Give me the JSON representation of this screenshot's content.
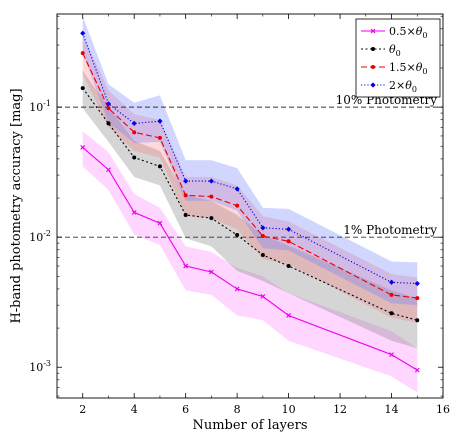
{
  "chart_data": {
    "type": "line",
    "title": "",
    "xlabel": "Number of layers",
    "ylabel": "H-band photometry accuracy [mag]",
    "xlim": [
      1,
      16
    ],
    "ylim": [
      0.00058,
      0.52
    ],
    "yscale": "log",
    "grid": false,
    "legend_position": "top-right",
    "x_ticks": [
      2,
      4,
      6,
      8,
      10,
      12,
      14,
      16
    ],
    "y_ticks": [
      {
        "value": 0.001,
        "label": "10",
        "exp": "-3"
      },
      {
        "value": 0.01,
        "label": "10",
        "exp": "-2"
      },
      {
        "value": 0.1,
        "label": "10",
        "exp": "-1"
      }
    ],
    "reference_lines": [
      {
        "y": 0.1,
        "label": "10% Photometry"
      },
      {
        "y": 0.01,
        "label": "1% Photometry"
      }
    ],
    "x": [
      2,
      3,
      4,
      5,
      6,
      7,
      8,
      9,
      10,
      14,
      15
    ],
    "series": [
      {
        "name": "0.5×θ0",
        "legend_main": "0.5×",
        "legend_theta": "θ",
        "legend_sub": "0",
        "color": "#ee00ee",
        "band_color": "#ff99ff",
        "band_opacity": 0.4,
        "dash": "",
        "marker": "cross",
        "values": [
          0.049,
          0.033,
          0.0155,
          0.0128,
          0.006,
          0.0054,
          0.004,
          0.0035,
          0.0025,
          0.00125,
          0.00095
        ],
        "lower": [
          0.035,
          0.023,
          0.0105,
          0.0087,
          0.0039,
          0.0036,
          0.0025,
          0.0023,
          0.0016,
          0.00085,
          0.00064
        ],
        "upper": [
          0.065,
          0.045,
          0.0215,
          0.0168,
          0.0085,
          0.0077,
          0.0058,
          0.005,
          0.0037,
          0.0019,
          0.0014
        ]
      },
      {
        "name": "θ0",
        "legend_main": "",
        "legend_theta": "θ",
        "legend_sub": "0",
        "color": "#000000",
        "band_color": "#888888",
        "band_opacity": 0.35,
        "dash": "2 2.5",
        "marker": "dot",
        "values": [
          0.14,
          0.075,
          0.041,
          0.035,
          0.0148,
          0.014,
          0.0104,
          0.0073,
          0.006,
          0.0026,
          0.0023
        ],
        "lower": [
          0.098,
          0.054,
          0.029,
          0.025,
          0.0098,
          0.0085,
          0.0055,
          0.0046,
          0.0037,
          0.0016,
          0.0014
        ],
        "upper": [
          0.19,
          0.1,
          0.055,
          0.046,
          0.021,
          0.019,
          0.0148,
          0.0104,
          0.0086,
          0.0039,
          0.0034
        ]
      },
      {
        "name": "1.5×θ0",
        "legend_main": "1.5×",
        "legend_theta": "θ",
        "legend_sub": "0",
        "color": "#ee0000",
        "band_color": "#ff6666",
        "band_opacity": 0.25,
        "dash": "6 3",
        "marker": "dot",
        "values": [
          0.26,
          0.098,
          0.064,
          0.058,
          0.021,
          0.0205,
          0.0175,
          0.0102,
          0.0093,
          0.0036,
          0.0034
        ],
        "lower": [
          0.18,
          0.07,
          0.046,
          0.041,
          0.0145,
          0.014,
          0.0115,
          0.0068,
          0.0062,
          0.0024,
          0.0022
        ],
        "upper": [
          0.36,
          0.135,
          0.088,
          0.08,
          0.029,
          0.029,
          0.025,
          0.0145,
          0.0132,
          0.0052,
          0.0049
        ]
      },
      {
        "name": "2×θ0",
        "legend_main": "2×",
        "legend_theta": "θ",
        "legend_sub": "0",
        "color": "#0000ee",
        "band_color": "#6677ff",
        "band_opacity": 0.3,
        "dash": "1.2 2",
        "marker": "diamond",
        "values": [
          0.37,
          0.106,
          0.075,
          0.078,
          0.027,
          0.027,
          0.0235,
          0.0118,
          0.0115,
          0.0045,
          0.0044
        ],
        "lower": [
          0.26,
          0.076,
          0.053,
          0.054,
          0.019,
          0.019,
          0.016,
          0.0082,
          0.0079,
          0.0031,
          0.003
        ],
        "upper": [
          0.5,
          0.15,
          0.108,
          0.123,
          0.039,
          0.039,
          0.034,
          0.0168,
          0.0165,
          0.0065,
          0.0064
        ]
      }
    ]
  }
}
